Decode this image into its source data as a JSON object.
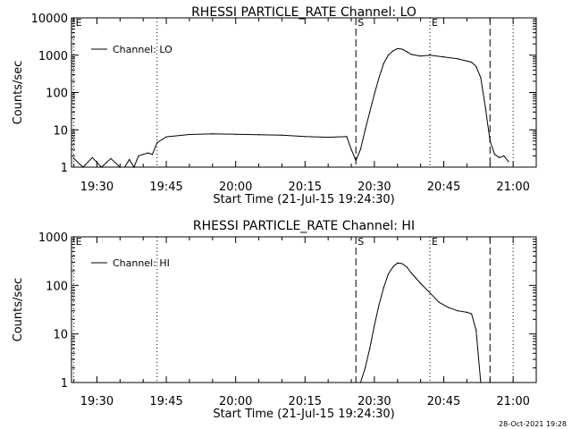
{
  "footer": {
    "stamp": "28-Oct-2021 19:28"
  },
  "chart_data": [
    {
      "type": "line",
      "title": "RHESSI PARTICLE_RATE Channel: LO",
      "xlabel": "Start Time (21-Jul-15 19:24:30)",
      "ylabel": "Counts/sec",
      "x_unit": "minutes of day (clock time)",
      "xlim": [
        "19:24:30",
        "21:05"
      ],
      "y_scale": "log",
      "ylim": [
        1,
        10000
      ],
      "x_ticks": [
        "19:30",
        "19:45",
        "20:00",
        "20:15",
        "20:30",
        "20:45",
        "21:00"
      ],
      "y_ticks": [
        "1",
        "10",
        "100",
        "1000",
        "10000"
      ],
      "legend": {
        "position": "top-left",
        "entries": [
          "Channel: LO"
        ]
      },
      "markers": [
        {
          "label": "E",
          "time": "19:25",
          "style": "dotted"
        },
        {
          "label": "",
          "time": "19:43",
          "style": "dotted"
        },
        {
          "label": "S",
          "time": "20:26",
          "style": "dashed"
        },
        {
          "label": "E",
          "time": "20:42",
          "style": "dotted"
        },
        {
          "label": "",
          "time": "20:55",
          "style": "dashed"
        },
        {
          "label": "",
          "time": "21:00",
          "style": "dotted"
        }
      ],
      "series": [
        {
          "name": "Channel: LO",
          "x": [
            "19:25",
            "19:27",
            "19:29",
            "19:31",
            "19:33",
            "19:35",
            "19:36",
            "19:37",
            "19:38",
            "19:39",
            "19:40",
            "19:41",
            "19:42",
            "19:43",
            "19:45",
            "19:50",
            "19:55",
            "20:00",
            "20:05",
            "20:10",
            "20:15",
            "20:20",
            "20:24",
            "20:25",
            "20:26",
            "20:27",
            "20:28",
            "20:29",
            "20:30",
            "20:31",
            "20:32",
            "20:33",
            "20:34",
            "20:35",
            "20:36",
            "20:37",
            "20:38",
            "20:40",
            "20:42",
            "20:45",
            "20:48",
            "20:51",
            "20:52",
            "20:53",
            "20:54",
            "20:55",
            "20:56",
            "20:57",
            "20:58",
            "20:59"
          ],
          "values": [
            1.7,
            1.0,
            1.8,
            1.0,
            1.7,
            1.0,
            1.0,
            1.6,
            1.0,
            2.0,
            2.2,
            2.4,
            2.2,
            4.5,
            6.5,
            7.5,
            7.8,
            7.6,
            7.4,
            7.2,
            6.6,
            6.3,
            6.6,
            3.0,
            1.5,
            3.0,
            10,
            30,
            90,
            250,
            600,
            1000,
            1300,
            1500,
            1450,
            1250,
            1050,
            950,
            1000,
            900,
            800,
            650,
            500,
            250,
            40,
            5,
            2.2,
            1.8,
            2.0,
            1.4
          ]
        }
      ]
    },
    {
      "type": "line",
      "title": "RHESSI PARTICLE_RATE Channel: HI",
      "xlabel": "Start Time (21-Jul-15 19:24:30)",
      "ylabel": "Counts/sec",
      "x_unit": "minutes of day (clock time)",
      "xlim": [
        "19:24:30",
        "21:05"
      ],
      "y_scale": "log",
      "ylim": [
        1,
        1000
      ],
      "x_ticks": [
        "19:30",
        "19:45",
        "20:00",
        "20:15",
        "20:30",
        "20:45",
        "21:00"
      ],
      "y_ticks": [
        "1",
        "10",
        "100",
        "1000"
      ],
      "legend": {
        "position": "top-left",
        "entries": [
          "Channel: HI"
        ]
      },
      "markers": [
        {
          "label": "E",
          "time": "19:25",
          "style": "dotted"
        },
        {
          "label": "",
          "time": "19:43",
          "style": "dotted"
        },
        {
          "label": "S",
          "time": "20:26",
          "style": "dashed"
        },
        {
          "label": "E",
          "time": "20:42",
          "style": "dotted"
        },
        {
          "label": "",
          "time": "20:55",
          "style": "dashed"
        },
        {
          "label": "",
          "time": "21:00",
          "style": "dotted"
        }
      ],
      "series": [
        {
          "name": "Channel: HI",
          "x": [
            "20:27",
            "20:28",
            "20:29",
            "20:30",
            "20:31",
            "20:32",
            "20:33",
            "20:34",
            "20:35",
            "20:36",
            "20:37",
            "20:38",
            "20:40",
            "20:42",
            "20:44",
            "20:46",
            "20:48",
            "20:50",
            "20:51",
            "20:52",
            "20:53"
          ],
          "values": [
            1.0,
            2.0,
            5,
            15,
            40,
            90,
            170,
            240,
            290,
            280,
            240,
            180,
            110,
            70,
            45,
            35,
            30,
            28,
            26,
            12,
            1.0
          ]
        }
      ]
    }
  ]
}
